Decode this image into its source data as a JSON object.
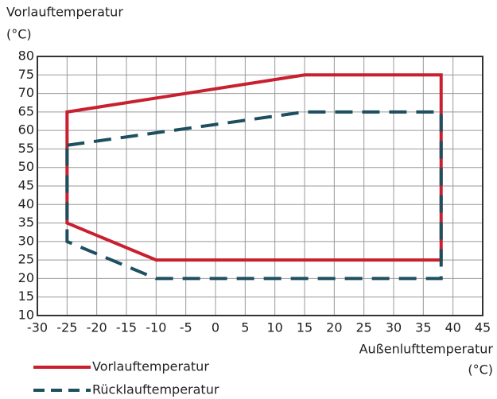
{
  "chart_data": {
    "type": "polygon",
    "y_label": [
      "Vorlauftemperatur",
      "(°C)"
    ],
    "x_label": [
      "Außenlufttemperatur",
      "(°C)"
    ],
    "xlim": [
      -30,
      45
    ],
    "xticks": [
      -30,
      -25,
      -20,
      -15,
      -10,
      -5,
      0,
      5,
      10,
      15,
      20,
      25,
      30,
      35,
      40,
      45
    ],
    "ylim": [
      10,
      80
    ],
    "yticks": [
      10,
      15,
      20,
      25,
      30,
      35,
      40,
      45,
      50,
      55,
      60,
      65,
      70,
      75,
      80
    ],
    "grid": true,
    "series": [
      {
        "name": "Vorlauftemperatur",
        "color": "#c8202f",
        "dashed": false,
        "x": [
          -25,
          15,
          38,
          38,
          -10,
          -25
        ],
        "values": [
          65,
          75,
          75,
          25,
          25,
          35
        ]
      },
      {
        "name": "Rücklauftemperatur",
        "color": "#1d4f60",
        "dashed": true,
        "x": [
          -25,
          15,
          38,
          38,
          -10,
          -25
        ],
        "values": [
          56,
          65,
          65,
          20,
          20,
          30
        ]
      }
    ]
  }
}
